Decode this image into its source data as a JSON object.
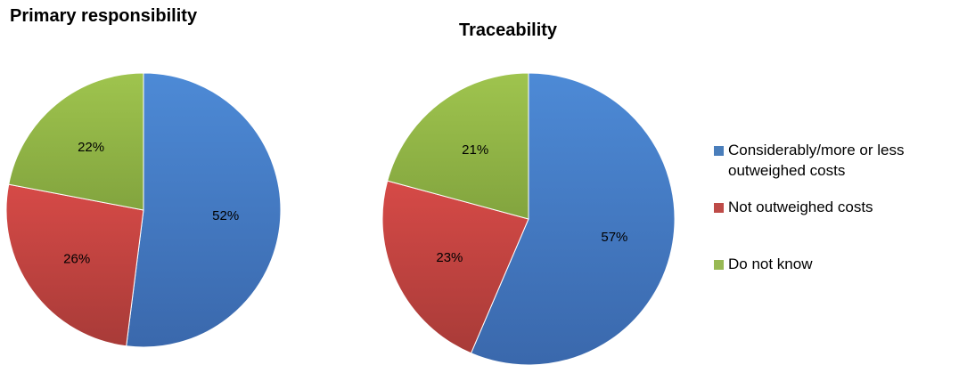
{
  "chart_data": [
    {
      "type": "pie",
      "title": "Primary responsibility",
      "slices": [
        {
          "name": "Considerably/more or less outweighed costs",
          "value": 52,
          "label": "52%"
        },
        {
          "name": "Not outweighed costs",
          "value": 26,
          "label": "26%"
        },
        {
          "name": "Do  not know",
          "value": 22,
          "label": "22%"
        }
      ]
    },
    {
      "type": "pie",
      "title": "Traceability",
      "slices": [
        {
          "name": "Considerably/more or less outweighed costs",
          "value": 57,
          "label": "57%"
        },
        {
          "name": "Not outweighed costs",
          "value": 23,
          "label": "23%"
        },
        {
          "name": "Do  not know",
          "value": 21,
          "label": "21%"
        }
      ]
    }
  ],
  "legend": {
    "placement": "right",
    "items": [
      {
        "label": "Considerably/more or less outweighed costs",
        "color": "#4a7ebb"
      },
      {
        "label": "Not outweighed costs",
        "color": "#be4b48"
      },
      {
        "label": "Do  not know",
        "color": "#98b954"
      }
    ]
  },
  "colors": {
    "blue_light": "#5b9bd5",
    "blue_dark": "#3465a4",
    "red_light": "#d9534f",
    "red_dark": "#a83a37",
    "green_light": "#a5c95a",
    "green_dark": "#86a83f"
  }
}
